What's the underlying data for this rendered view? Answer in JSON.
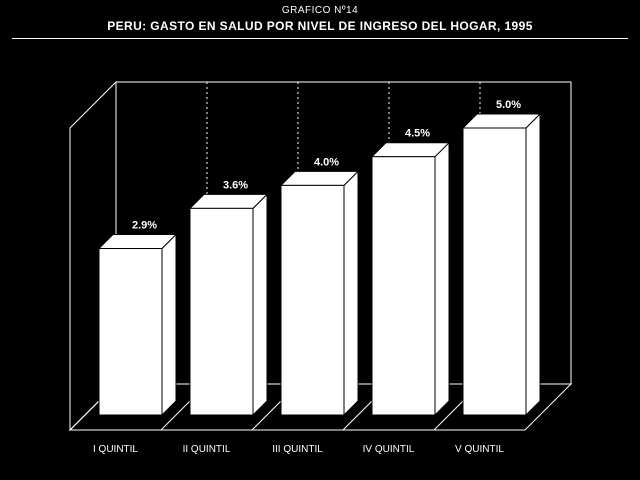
{
  "header": {
    "supertitle": "GRAFICO Nº14",
    "title": "PERU: GASTO EN SALUD POR NIVEL DE INGRESO DEL HOGAR, 1995"
  },
  "chart_data": {
    "type": "bar",
    "style": "3d",
    "grid": "vertical dashed",
    "categories": [
      "I QUINTIL",
      "II QUINTIL",
      "III QUINTIL",
      "IV QUINTIL",
      "V QUINTIL"
    ],
    "values": [
      2.9,
      3.6,
      4.0,
      4.5,
      5.0
    ],
    "value_labels": [
      "2.9%",
      "3.6%",
      "4.0%",
      "4.5%",
      "5.0%"
    ],
    "ylim": [
      0,
      6
    ],
    "colors": {
      "background": "#000000",
      "bars": "#ffffff",
      "lines": "#ffffff"
    }
  }
}
